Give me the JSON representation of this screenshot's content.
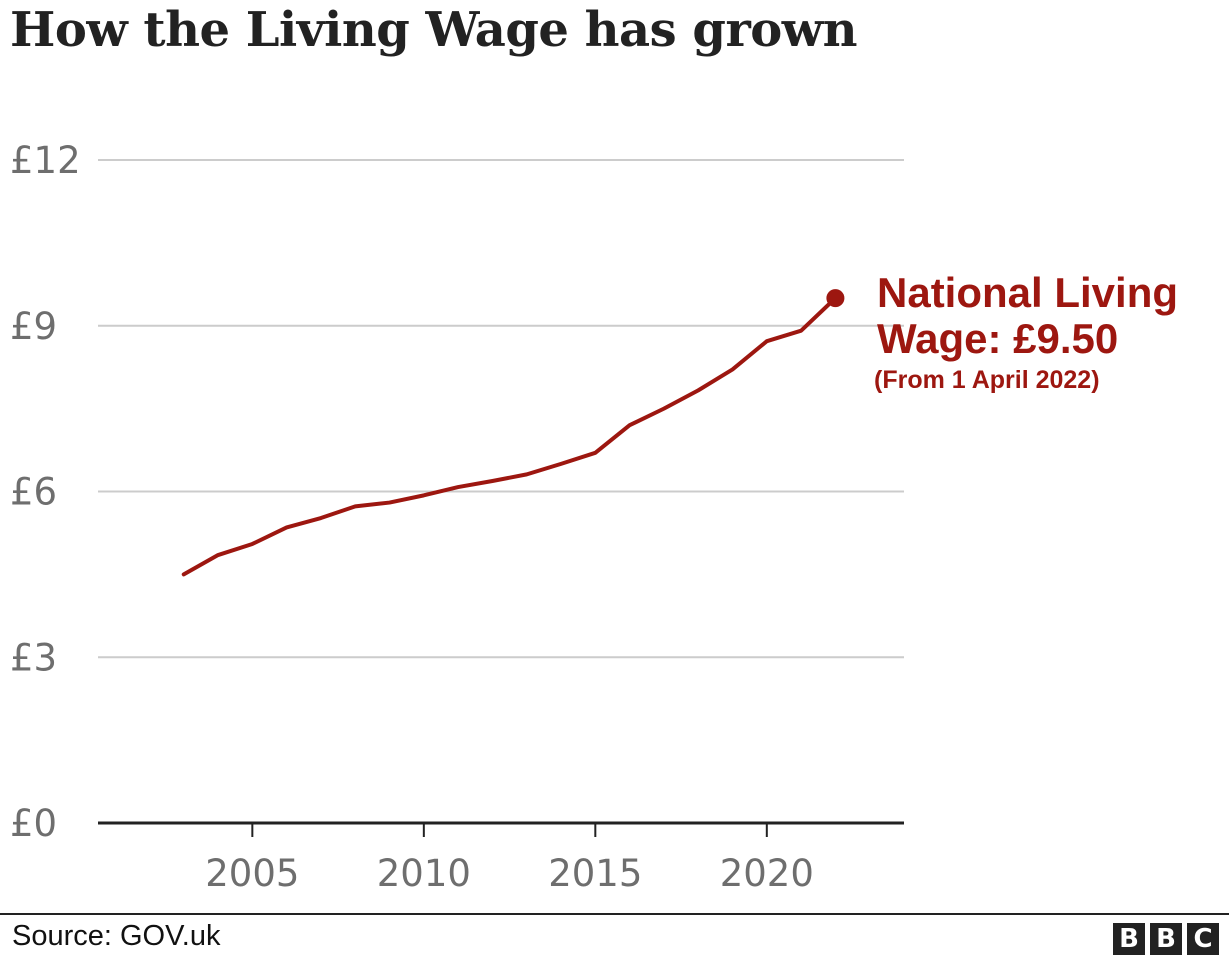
{
  "title": "How the Living Wage has grown",
  "annotation": {
    "line1": "National Living",
    "line2": "Wage: £9.50",
    "note": "(From 1 April 2022)"
  },
  "source": "Source: GOV.uk",
  "logo_letters": [
    "B",
    "B",
    "C"
  ],
  "colors": {
    "line": "#9d1710",
    "grid": "#cccccc",
    "axis": "#222222",
    "tick": "#6e6e6e"
  },
  "chart_data": {
    "type": "line",
    "title": "How the Living Wage has grown",
    "xlabel": "",
    "ylabel": "",
    "xlim": [
      2000.5,
      2024
    ],
    "ylim": [
      0,
      12
    ],
    "yticks": [
      0,
      3,
      6,
      9,
      12
    ],
    "ytick_labels": [
      "£0",
      "£3",
      "£6",
      "£9",
      "£12"
    ],
    "xticks": [
      2005,
      2010,
      2015,
      2020
    ],
    "xtick_labels": [
      "2005",
      "2010",
      "2015",
      "2020"
    ],
    "grid": true,
    "x": [
      2003,
      2004,
      2005,
      2006,
      2007,
      2008,
      2009,
      2010,
      2011,
      2012,
      2013,
      2014,
      2015,
      2016,
      2017,
      2018,
      2019,
      2020,
      2021,
      2022
    ],
    "series": [
      {
        "values": [
          4.5,
          4.85,
          5.05,
          5.35,
          5.52,
          5.73,
          5.8,
          5.93,
          6.08,
          6.19,
          6.31,
          6.5,
          6.7,
          7.2,
          7.5,
          7.83,
          8.21,
          8.72,
          8.91,
          9.5
        ]
      }
    ],
    "highlight": {
      "x": 2022,
      "y": 9.5
    }
  }
}
